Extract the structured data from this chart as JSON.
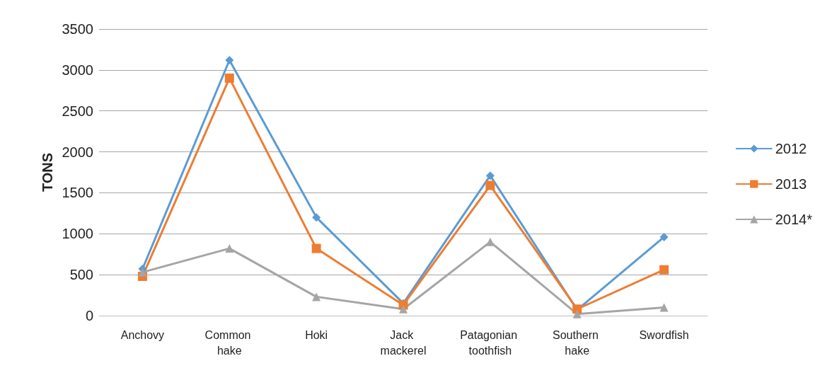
{
  "chart_data": {
    "type": "line",
    "ylabel": "TONS",
    "categories": [
      "Anchovy",
      "Common hake",
      "Hoki",
      "Jack mackerel",
      "Patagonian toothfish",
      "Southern hake",
      "Swordfish"
    ],
    "series": [
      {
        "name": "2012",
        "color": "#5b9bd5",
        "marker": "diamond",
        "values": [
          570,
          3120,
          1200,
          150,
          1710,
          70,
          960
        ]
      },
      {
        "name": "2013",
        "color": "#ed7d31",
        "marker": "square",
        "values": [
          480,
          2900,
          820,
          130,
          1590,
          80,
          560
        ]
      },
      {
        "name": "2014*",
        "color": "#a5a5a5",
        "marker": "triangle",
        "values": [
          530,
          820,
          230,
          80,
          900,
          20,
          100
        ]
      }
    ],
    "ylim": [
      0,
      3500
    ],
    "yticks": [
      0,
      500,
      1000,
      1500,
      2000,
      2500,
      3000,
      3500
    ],
    "grid": "y",
    "legend": "right",
    "line_style": "solid"
  }
}
